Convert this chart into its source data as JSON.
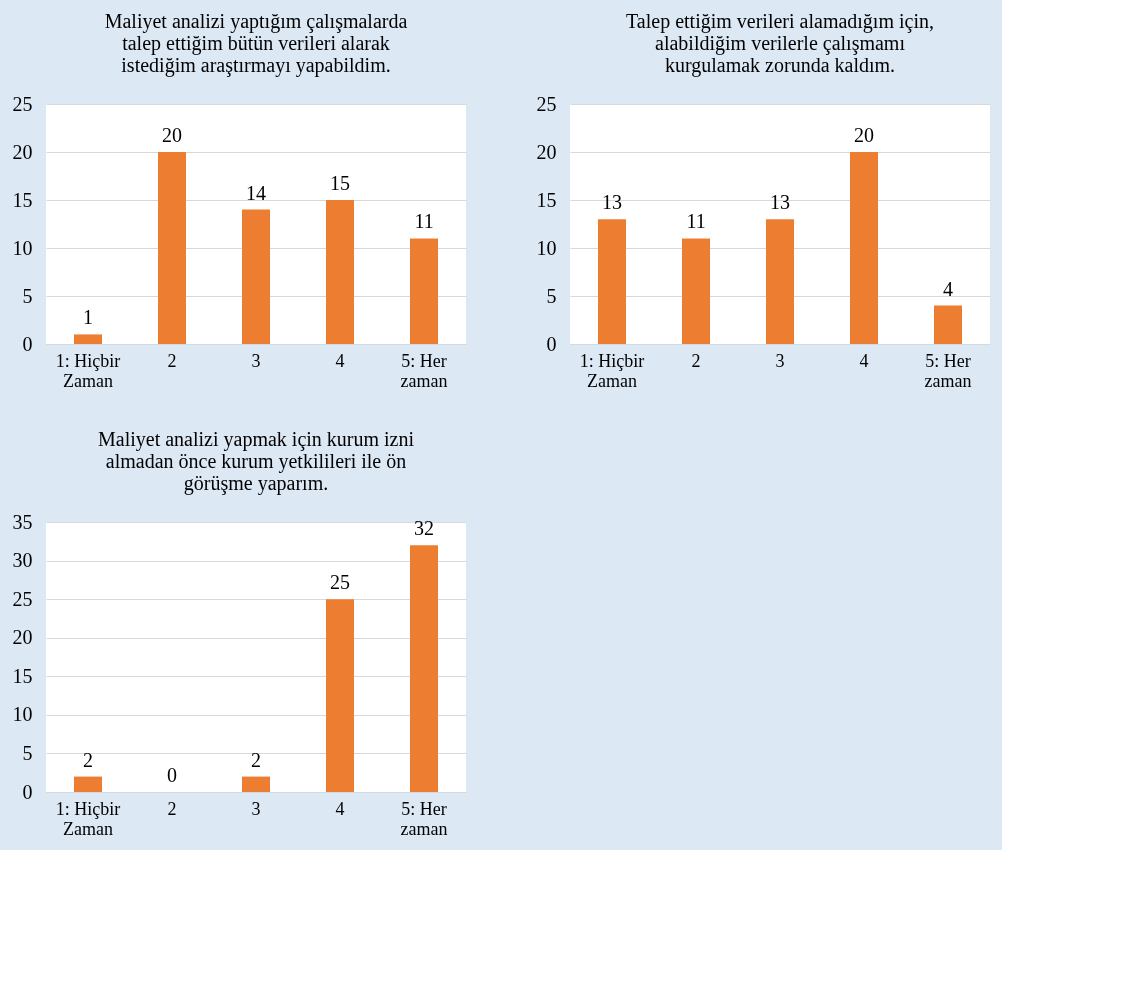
{
  "chart_data": [
    {
      "type": "bar",
      "title": "Maliyet analizi yaptığım çalışmalarda\ntalep ettiğim bütün verileri alarak\nistediğim araştırmayı yapabildim.",
      "categories": [
        "1: Hiçbir\nZaman",
        "2",
        "3",
        "4",
        "5: Her\nzaman"
      ],
      "values": [
        1,
        20,
        14,
        15,
        11
      ],
      "color": "#ed7d31",
      "ylim": [
        0,
        25
      ],
      "yticks": [
        0,
        5,
        10,
        15,
        20,
        25
      ],
      "grid": "y",
      "data_labels": true
    },
    {
      "type": "bar",
      "title": "Talep ettiğim verileri alamadığım için,\nalabildiğim verilerle çalışmamı\nkurgulamak zorunda kaldım.",
      "categories": [
        "1: Hiçbir\nZaman",
        "2",
        "3",
        "4",
        "5: Her\nzaman"
      ],
      "values": [
        13,
        11,
        13,
        20,
        4
      ],
      "color": "#ed7d31",
      "ylim": [
        0,
        25
      ],
      "yticks": [
        0,
        5,
        10,
        15,
        20,
        25
      ],
      "grid": "y",
      "data_labels": true
    },
    {
      "type": "bar",
      "title": "Maliyet analizi yapmak için kurum izni\nalmadan önce kurum yetkilileri ile ön\ngörüşme yaparım.",
      "categories": [
        "1: Hiçbir\nZaman",
        "2",
        "3",
        "4",
        "5: Her\nzaman"
      ],
      "values": [
        2,
        0,
        2,
        25,
        32
      ],
      "color": "#ed7d31",
      "ylim": [
        0,
        35
      ],
      "yticks": [
        0,
        5,
        10,
        15,
        20,
        25,
        30,
        35
      ],
      "grid": "y",
      "data_labels": true
    }
  ]
}
